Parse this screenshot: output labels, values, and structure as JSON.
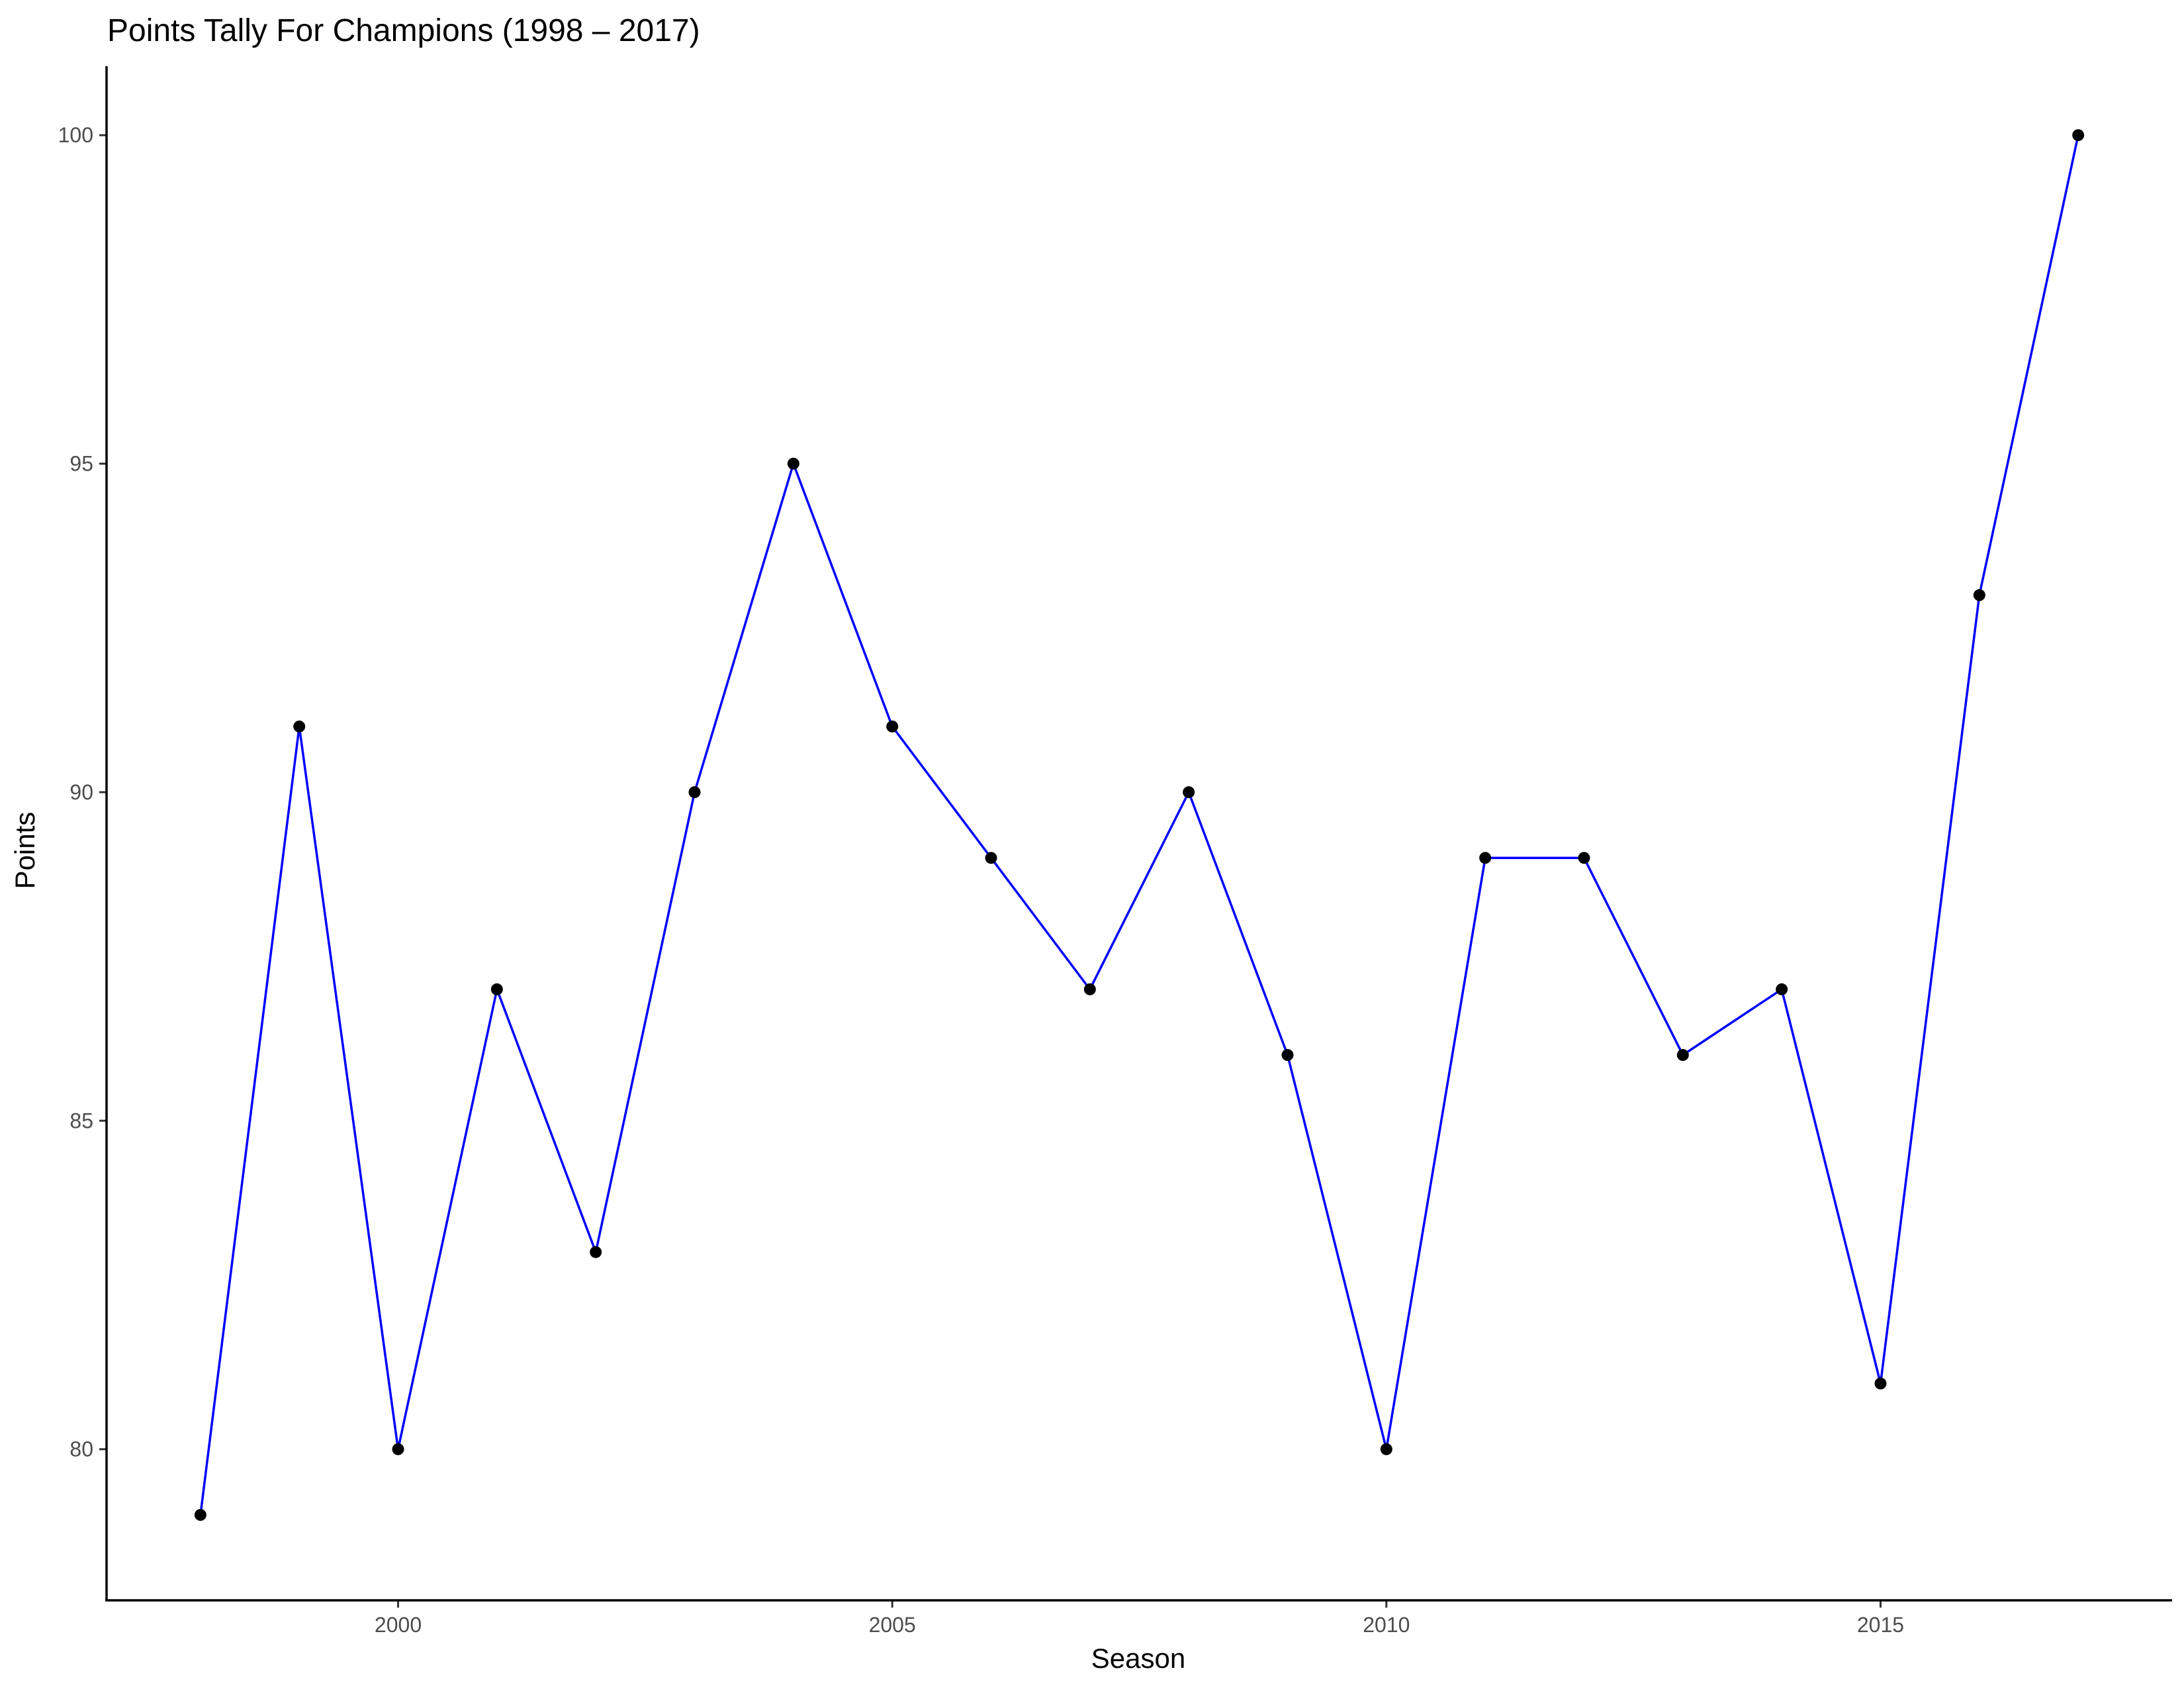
{
  "chart_data": {
    "type": "line",
    "title": "Points Tally For Champions (1998 – 2017)",
    "xlabel": "Season",
    "ylabel": "Points",
    "x": [
      1998,
      1999,
      2000,
      2001,
      2002,
      2003,
      2004,
      2005,
      2006,
      2007,
      2008,
      2009,
      2010,
      2011,
      2012,
      2013,
      2014,
      2015,
      2016,
      2017
    ],
    "series": [
      {
        "values": [
          79,
          91,
          80,
          87,
          83,
          90,
          95,
          91,
          89,
          87,
          90,
          86,
          80,
          89,
          89,
          86,
          87,
          81,
          93,
          100
        ]
      }
    ],
    "xlim": [
      1997.05,
      2017.95
    ],
    "ylim": [
      77.7,
      101.05
    ],
    "xticks": [
      "2000",
      "2005",
      "2010",
      "2015"
    ],
    "yticks": [
      "80",
      "85",
      "90",
      "95",
      "100"
    ],
    "grid": false,
    "legend": "none",
    "line_color": "#0000ff",
    "point_color": "#000000",
    "background_color": "#ffffff"
  }
}
